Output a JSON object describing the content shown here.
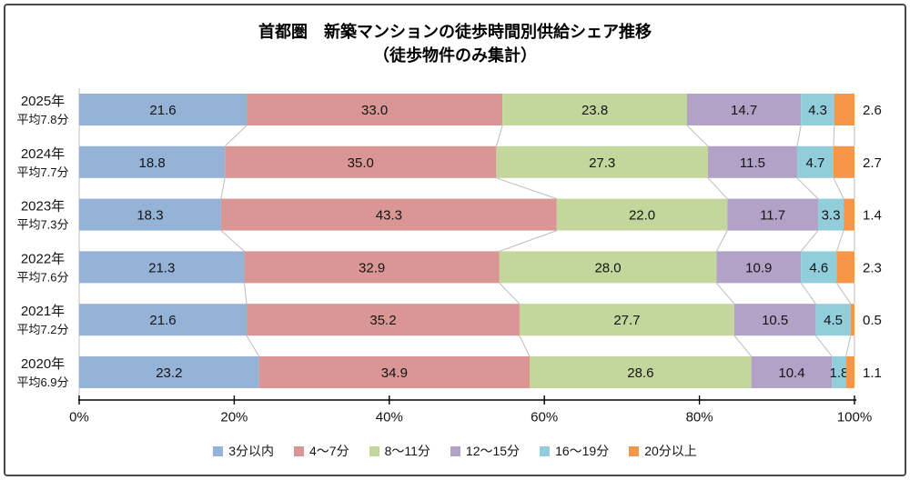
{
  "title": {
    "line1": "首都圏　新築マンションの徒歩時間別供給シェア推移",
    "line2": "（徒歩物件のみ集計）"
  },
  "chart_data": {
    "type": "bar",
    "variant": "horizontal-stacked",
    "unit": "%",
    "xlim": [
      0,
      100
    ],
    "x_ticks": [
      "0%",
      "20%",
      "40%",
      "60%",
      "80%",
      "100%"
    ],
    "grid": false,
    "legend_position": "bottom",
    "categories": [
      {
        "year": "2025年",
        "avg_label": "平均7.8分"
      },
      {
        "year": "2024年",
        "avg_label": "平均7.7分"
      },
      {
        "year": "2023年",
        "avg_label": "平均7.3分"
      },
      {
        "year": "2022年",
        "avg_label": "平均7.6分"
      },
      {
        "year": "2021年",
        "avg_label": "平均7.2分"
      },
      {
        "year": "2020年",
        "avg_label": "平均6.9分"
      }
    ],
    "series": [
      {
        "name": "3分以内",
        "color": "#95B3D7",
        "values": [
          21.6,
          18.8,
          18.3,
          21.3,
          21.6,
          23.2
        ]
      },
      {
        "name": "4～7分",
        "color": "#D99694",
        "values": [
          33.0,
          35.0,
          43.3,
          32.9,
          35.2,
          34.9
        ]
      },
      {
        "name": "8～11分",
        "color": "#C3D69B",
        "values": [
          23.8,
          27.3,
          22.0,
          28.0,
          27.7,
          28.6
        ]
      },
      {
        "name": "12～15分",
        "color": "#B2A2C7",
        "values": [
          14.7,
          11.5,
          11.7,
          10.9,
          10.5,
          10.4
        ]
      },
      {
        "name": "16～19分",
        "color": "#92CDDC",
        "values": [
          4.3,
          4.7,
          3.3,
          4.6,
          4.5,
          1.8
        ]
      },
      {
        "name": "20分以上",
        "color": "#F79646",
        "values": [
          2.6,
          2.7,
          1.4,
          2.3,
          0.5,
          1.1
        ]
      }
    ],
    "colors": {
      "connector": "#BDBDBD",
      "axis": "#000000",
      "category_axis": "#BFBFBF",
      "value_label": "#141414"
    }
  }
}
